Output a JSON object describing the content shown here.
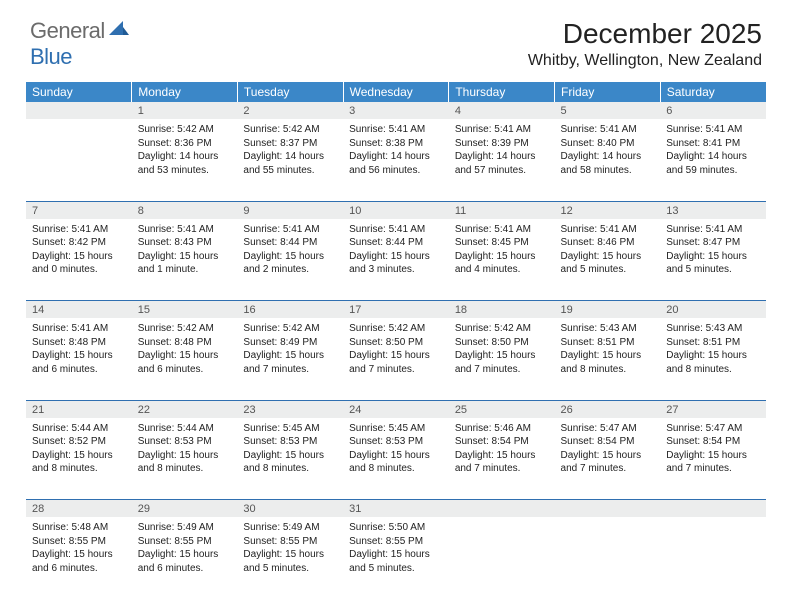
{
  "logo": {
    "general": "General",
    "blue": "Blue"
  },
  "title": "December 2025",
  "location": "Whitby, Wellington, New Zealand",
  "colors": {
    "header_bg": "#3b87c8",
    "header_text": "#ffffff",
    "daynum_bg": "#eceded",
    "daynum_text": "#555555",
    "cell_border": "#2f6fb0",
    "logo_gray": "#6b6b6b",
    "logo_blue": "#2f6fb0"
  },
  "day_headers": [
    "Sunday",
    "Monday",
    "Tuesday",
    "Wednesday",
    "Thursday",
    "Friday",
    "Saturday"
  ],
  "weeks": [
    {
      "nums": [
        "",
        "1",
        "2",
        "3",
        "4",
        "5",
        "6"
      ],
      "cells": [
        null,
        {
          "sunrise": "Sunrise: 5:42 AM",
          "sunset": "Sunset: 8:36 PM",
          "daylight": "Daylight: 14 hours and 53 minutes."
        },
        {
          "sunrise": "Sunrise: 5:42 AM",
          "sunset": "Sunset: 8:37 PM",
          "daylight": "Daylight: 14 hours and 55 minutes."
        },
        {
          "sunrise": "Sunrise: 5:41 AM",
          "sunset": "Sunset: 8:38 PM",
          "daylight": "Daylight: 14 hours and 56 minutes."
        },
        {
          "sunrise": "Sunrise: 5:41 AM",
          "sunset": "Sunset: 8:39 PM",
          "daylight": "Daylight: 14 hours and 57 minutes."
        },
        {
          "sunrise": "Sunrise: 5:41 AM",
          "sunset": "Sunset: 8:40 PM",
          "daylight": "Daylight: 14 hours and 58 minutes."
        },
        {
          "sunrise": "Sunrise: 5:41 AM",
          "sunset": "Sunset: 8:41 PM",
          "daylight": "Daylight: 14 hours and 59 minutes."
        }
      ]
    },
    {
      "nums": [
        "7",
        "8",
        "9",
        "10",
        "11",
        "12",
        "13"
      ],
      "cells": [
        {
          "sunrise": "Sunrise: 5:41 AM",
          "sunset": "Sunset: 8:42 PM",
          "daylight": "Daylight: 15 hours and 0 minutes."
        },
        {
          "sunrise": "Sunrise: 5:41 AM",
          "sunset": "Sunset: 8:43 PM",
          "daylight": "Daylight: 15 hours and 1 minute."
        },
        {
          "sunrise": "Sunrise: 5:41 AM",
          "sunset": "Sunset: 8:44 PM",
          "daylight": "Daylight: 15 hours and 2 minutes."
        },
        {
          "sunrise": "Sunrise: 5:41 AM",
          "sunset": "Sunset: 8:44 PM",
          "daylight": "Daylight: 15 hours and 3 minutes."
        },
        {
          "sunrise": "Sunrise: 5:41 AM",
          "sunset": "Sunset: 8:45 PM",
          "daylight": "Daylight: 15 hours and 4 minutes."
        },
        {
          "sunrise": "Sunrise: 5:41 AM",
          "sunset": "Sunset: 8:46 PM",
          "daylight": "Daylight: 15 hours and 5 minutes."
        },
        {
          "sunrise": "Sunrise: 5:41 AM",
          "sunset": "Sunset: 8:47 PM",
          "daylight": "Daylight: 15 hours and 5 minutes."
        }
      ]
    },
    {
      "nums": [
        "14",
        "15",
        "16",
        "17",
        "18",
        "19",
        "20"
      ],
      "cells": [
        {
          "sunrise": "Sunrise: 5:41 AM",
          "sunset": "Sunset: 8:48 PM",
          "daylight": "Daylight: 15 hours and 6 minutes."
        },
        {
          "sunrise": "Sunrise: 5:42 AM",
          "sunset": "Sunset: 8:48 PM",
          "daylight": "Daylight: 15 hours and 6 minutes."
        },
        {
          "sunrise": "Sunrise: 5:42 AM",
          "sunset": "Sunset: 8:49 PM",
          "daylight": "Daylight: 15 hours and 7 minutes."
        },
        {
          "sunrise": "Sunrise: 5:42 AM",
          "sunset": "Sunset: 8:50 PM",
          "daylight": "Daylight: 15 hours and 7 minutes."
        },
        {
          "sunrise": "Sunrise: 5:42 AM",
          "sunset": "Sunset: 8:50 PM",
          "daylight": "Daylight: 15 hours and 7 minutes."
        },
        {
          "sunrise": "Sunrise: 5:43 AM",
          "sunset": "Sunset: 8:51 PM",
          "daylight": "Daylight: 15 hours and 8 minutes."
        },
        {
          "sunrise": "Sunrise: 5:43 AM",
          "sunset": "Sunset: 8:51 PM",
          "daylight": "Daylight: 15 hours and 8 minutes."
        }
      ]
    },
    {
      "nums": [
        "21",
        "22",
        "23",
        "24",
        "25",
        "26",
        "27"
      ],
      "cells": [
        {
          "sunrise": "Sunrise: 5:44 AM",
          "sunset": "Sunset: 8:52 PM",
          "daylight": "Daylight: 15 hours and 8 minutes."
        },
        {
          "sunrise": "Sunrise: 5:44 AM",
          "sunset": "Sunset: 8:53 PM",
          "daylight": "Daylight: 15 hours and 8 minutes."
        },
        {
          "sunrise": "Sunrise: 5:45 AM",
          "sunset": "Sunset: 8:53 PM",
          "daylight": "Daylight: 15 hours and 8 minutes."
        },
        {
          "sunrise": "Sunrise: 5:45 AM",
          "sunset": "Sunset: 8:53 PM",
          "daylight": "Daylight: 15 hours and 8 minutes."
        },
        {
          "sunrise": "Sunrise: 5:46 AM",
          "sunset": "Sunset: 8:54 PM",
          "daylight": "Daylight: 15 hours and 7 minutes."
        },
        {
          "sunrise": "Sunrise: 5:47 AM",
          "sunset": "Sunset: 8:54 PM",
          "daylight": "Daylight: 15 hours and 7 minutes."
        },
        {
          "sunrise": "Sunrise: 5:47 AM",
          "sunset": "Sunset: 8:54 PM",
          "daylight": "Daylight: 15 hours and 7 minutes."
        }
      ]
    },
    {
      "nums": [
        "28",
        "29",
        "30",
        "31",
        "",
        "",
        ""
      ],
      "cells": [
        {
          "sunrise": "Sunrise: 5:48 AM",
          "sunset": "Sunset: 8:55 PM",
          "daylight": "Daylight: 15 hours and 6 minutes."
        },
        {
          "sunrise": "Sunrise: 5:49 AM",
          "sunset": "Sunset: 8:55 PM",
          "daylight": "Daylight: 15 hours and 6 minutes."
        },
        {
          "sunrise": "Sunrise: 5:49 AM",
          "sunset": "Sunset: 8:55 PM",
          "daylight": "Daylight: 15 hours and 5 minutes."
        },
        {
          "sunrise": "Sunrise: 5:50 AM",
          "sunset": "Sunset: 8:55 PM",
          "daylight": "Daylight: 15 hours and 5 minutes."
        },
        null,
        null,
        null
      ]
    }
  ]
}
